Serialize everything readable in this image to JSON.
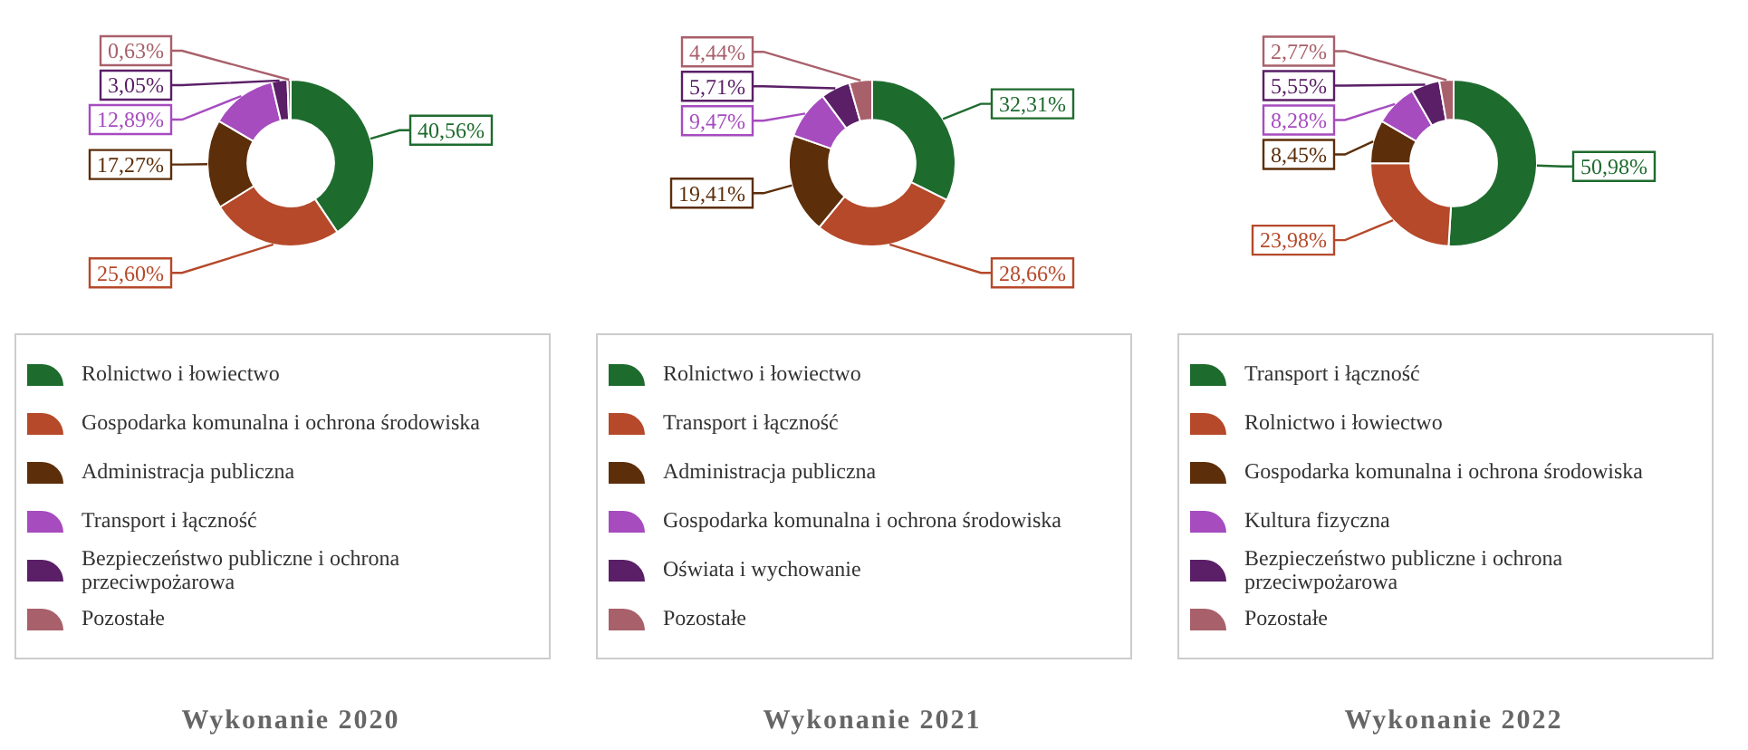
{
  "chart_data": [
    {
      "type": "donut",
      "title": "Wykonanie 2020",
      "legend": "bottom",
      "categories": [
        "Rolnictwo i łowiectwo",
        "Gospodarka komunalna i ochrona środowiska",
        "Administracja publiczna",
        "Transport i łączność",
        "Bezpieczeństwo publiczne i ochrona przeciwpożarowa",
        "Pozostałe"
      ],
      "values": [
        40.56,
        25.6,
        17.27,
        12.89,
        3.05,
        0.63
      ],
      "value_labels": [
        "40,56%",
        "25,60%",
        "17,27%",
        "12,89%",
        "3,05%",
        "0,63%"
      ],
      "colors": [
        "#1e6b2e",
        "#b5492a",
        "#5c2e0a",
        "#a64cbf",
        "#5a1f66",
        "#a8606b"
      ]
    },
    {
      "type": "donut",
      "title": "Wykonanie 2021",
      "legend": "bottom",
      "categories": [
        "Rolnictwo i łowiectwo",
        "Transport i łączność",
        "Administracja publiczna",
        "Gospodarka komunalna i ochrona środowiska",
        "Oświata i wychowanie",
        "Pozostałe"
      ],
      "values": [
        32.31,
        28.66,
        19.41,
        9.47,
        5.71,
        4.44
      ],
      "value_labels": [
        "32,31%",
        "28,66%",
        "19,41%",
        "9,47%",
        "5,71%",
        "4,44%"
      ],
      "colors": [
        "#1e6b2e",
        "#b5492a",
        "#5c2e0a",
        "#a64cbf",
        "#5a1f66",
        "#a8606b"
      ]
    },
    {
      "type": "donut",
      "title": "Wykonanie 2022",
      "legend": "bottom",
      "categories": [
        "Transport i łączność",
        "Rolnictwo i łowiectwo",
        "Gospodarka komunalna i ochrona środowiska",
        "Kultura fizyczna",
        "Bezpieczeństwo publiczne i ochrona przeciwpożarowa",
        "Pozostałe"
      ],
      "values": [
        50.98,
        23.98,
        8.45,
        8.28,
        5.55,
        2.77
      ],
      "value_labels": [
        "50,98%",
        "23,98%",
        "8,45%",
        "8,28%",
        "5,55%",
        "2,77%"
      ],
      "colors": [
        "#1e6b2e",
        "#b5492a",
        "#5c2e0a",
        "#a64cbf",
        "#5a1f66",
        "#a8606b"
      ]
    }
  ]
}
